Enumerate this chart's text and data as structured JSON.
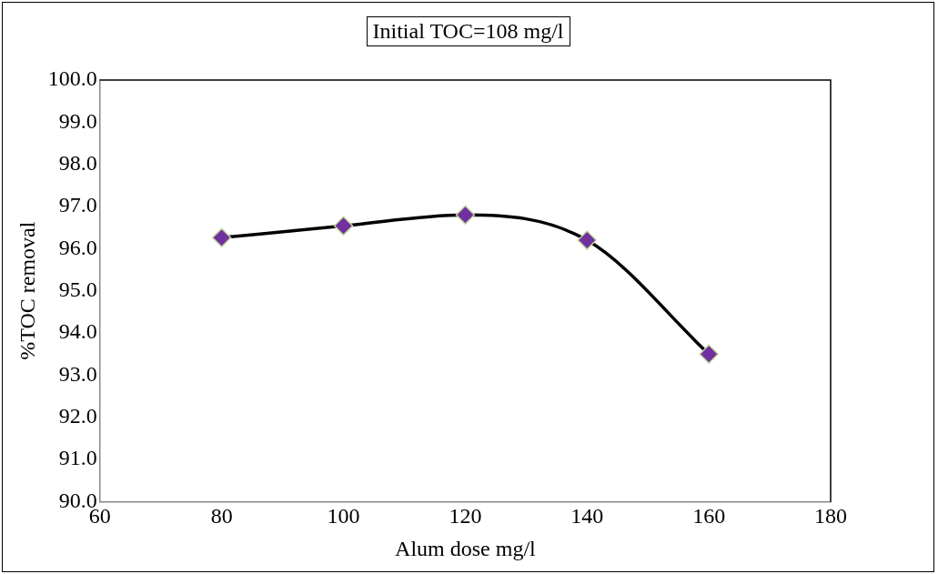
{
  "chart_data": {
    "type": "line",
    "title": "Initial TOC=108 mg/l",
    "xlabel": "Alum dose mg/l",
    "ylabel": "%TOC removal",
    "x": [
      80,
      100,
      120,
      140,
      160
    ],
    "series": [
      {
        "color": "#7030a0",
        "values": [
          96.26,
          96.54,
          96.8,
          96.2,
          93.5
        ]
      }
    ],
    "xlim": [
      60,
      180
    ],
    "xticks": [
      60,
      80,
      100,
      120,
      140,
      160,
      180
    ],
    "ylim": [
      90,
      100
    ],
    "yticks": [
      {
        "value": 90,
        "label": "90.0"
      },
      {
        "value": 91,
        "label": "91.0"
      },
      {
        "value": 92,
        "label": "92.0"
      },
      {
        "value": 93,
        "label": "93.0"
      },
      {
        "value": 94,
        "label": "94.0"
      },
      {
        "value": 95,
        "label": "95.0"
      },
      {
        "value": 96,
        "label": "96.0"
      },
      {
        "value": 97,
        "label": "97.0"
      },
      {
        "value": 98,
        "label": "98.0"
      },
      {
        "value": 99,
        "label": "99.0"
      },
      {
        "value": 100,
        "label": "100.0"
      }
    ],
    "grid": false,
    "legend": false,
    "marker": "diamond",
    "line_style": "solid"
  }
}
